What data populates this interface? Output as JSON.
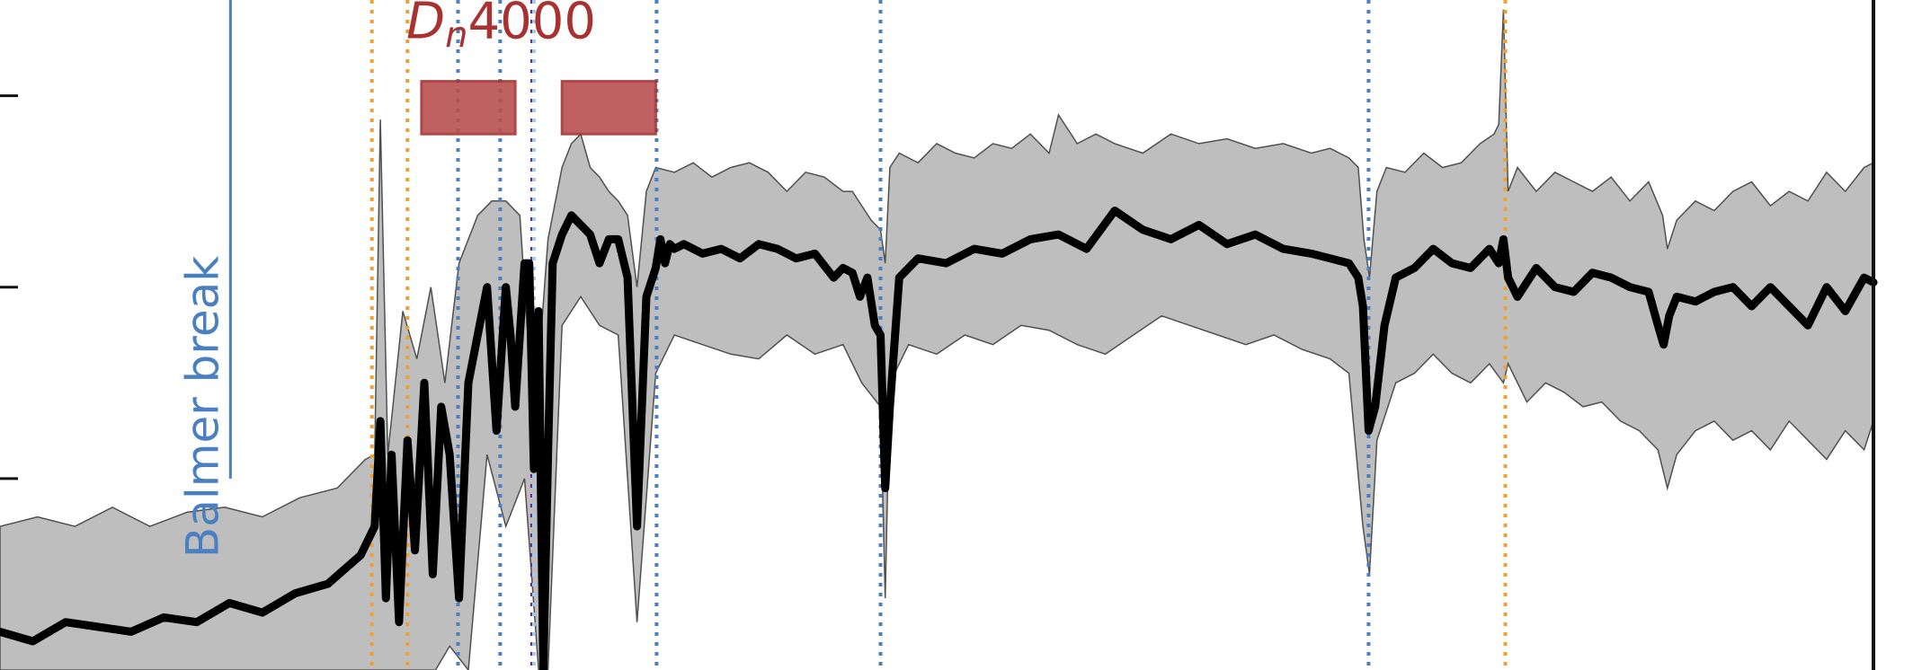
{
  "chart_data": {
    "type": "line",
    "title": "",
    "xlabel": "",
    "ylabel": "",
    "colors": {
      "median_line": "#000000",
      "band_fill": "#bebebe",
      "band_stroke": "#505050",
      "balmer": "#4a7fc1",
      "dn4000": "#a83232",
      "dn_box": "#b8504f",
      "orange": "#f0a030",
      "blue": "#4a7fc1",
      "purple": "#5a2a8a",
      "lightblue": "#a8c8e8"
    },
    "xlim": [
      3400,
      5400
    ],
    "ylim": [
      0,
      1.4
    ],
    "series": [
      {
        "role": "median",
        "x": [
          3400,
          3435,
          3470,
          3505,
          3540,
          3575,
          3610,
          3645,
          3680,
          3715,
          3750,
          3785,
          3800,
          3806,
          3812,
          3818,
          3826,
          3835,
          3843,
          3853,
          3862,
          3871,
          3880,
          3890,
          3900,
          3910,
          3920,
          3930,
          3940,
          3945,
          3950,
          3955,
          3960,
          3965,
          3970,
          3975,
          3980,
          3985,
          3990,
          4000,
          4010,
          4020,
          4030,
          4040,
          4050,
          4060,
          4070,
          4080,
          4090,
          4100,
          4105,
          4110,
          4115,
          4120,
          4130,
          4150,
          4170,
          4190,
          4210,
          4230,
          4250,
          4270,
          4290,
          4300,
          4310,
          4318,
          4326,
          4334,
          4340,
          4345,
          4350,
          4360,
          4380,
          4410,
          4440,
          4470,
          4500,
          4530,
          4560,
          4590,
          4620,
          4650,
          4680,
          4710,
          4740,
          4770,
          4800,
          4820,
          4840,
          4850,
          4855,
          4861,
          4868,
          4878,
          4890,
          4910,
          4930,
          4950,
          4970,
          4990,
          5000,
          5005,
          5010,
          5020,
          5040,
          5060,
          5080,
          5100,
          5120,
          5140,
          5160,
          5170,
          5176,
          5182,
          5190,
          5210,
          5230,
          5250,
          5270,
          5290,
          5310,
          5330,
          5350,
          5370,
          5390,
          5400
        ],
        "y": [
          0.08,
          0.06,
          0.1,
          0.09,
          0.08,
          0.11,
          0.1,
          0.14,
          0.12,
          0.16,
          0.18,
          0.24,
          0.3,
          0.52,
          0.15,
          0.45,
          0.1,
          0.48,
          0.25,
          0.6,
          0.2,
          0.55,
          0.45,
          0.15,
          0.6,
          0.7,
          0.8,
          0.5,
          0.8,
          0.7,
          0.55,
          0.7,
          0.85,
          0.85,
          0.42,
          0.75,
          0.0,
          0.45,
          0.85,
          0.91,
          0.95,
          0.93,
          0.91,
          0.85,
          0.9,
          0.9,
          0.82,
          0.3,
          0.78,
          0.84,
          0.9,
          0.85,
          0.89,
          0.88,
          0.89,
          0.87,
          0.88,
          0.86,
          0.89,
          0.88,
          0.86,
          0.87,
          0.82,
          0.84,
          0.83,
          0.78,
          0.82,
          0.72,
          0.7,
          0.38,
          0.55,
          0.82,
          0.86,
          0.85,
          0.88,
          0.87,
          0.9,
          0.91,
          0.88,
          0.96,
          0.92,
          0.9,
          0.93,
          0.89,
          0.91,
          0.88,
          0.87,
          0.86,
          0.85,
          0.82,
          0.76,
          0.5,
          0.55,
          0.72,
          0.82,
          0.84,
          0.88,
          0.85,
          0.84,
          0.88,
          0.85,
          0.9,
          0.82,
          0.78,
          0.84,
          0.8,
          0.79,
          0.83,
          0.82,
          0.8,
          0.79,
          0.72,
          0.68,
          0.74,
          0.78,
          0.77,
          0.79,
          0.8,
          0.76,
          0.8,
          0.76,
          0.72,
          0.8,
          0.75,
          0.82,
          0.81
        ]
      },
      {
        "role": "band_upper",
        "x": [
          3400,
          3440,
          3480,
          3520,
          3560,
          3600,
          3640,
          3680,
          3720,
          3760,
          3790,
          3800,
          3806,
          3814,
          3830,
          3845,
          3860,
          3875,
          3890,
          3910,
          3925,
          3940,
          3955,
          3970,
          3985,
          4000,
          4010,
          4020,
          4030,
          4040,
          4050,
          4060,
          4070,
          4080,
          4090,
          4100,
          4120,
          4140,
          4160,
          4180,
          4200,
          4220,
          4240,
          4260,
          4280,
          4300,
          4310,
          4320,
          4330,
          4340,
          4345,
          4350,
          4360,
          4380,
          4400,
          4420,
          4440,
          4460,
          4480,
          4500,
          4520,
          4530,
          4550,
          4570,
          4590,
          4620,
          4650,
          4680,
          4710,
          4740,
          4770,
          4800,
          4820,
          4840,
          4850,
          4856,
          4862,
          4870,
          4880,
          4900,
          4920,
          4940,
          4960,
          4980,
          4995,
          5000,
          5005,
          5010,
          5020,
          5040,
          5060,
          5080,
          5100,
          5120,
          5140,
          5160,
          5175,
          5180,
          5190,
          5210,
          5230,
          5250,
          5270,
          5290,
          5310,
          5330,
          5350,
          5370,
          5390,
          5400
        ],
        "y": [
          0.3,
          0.32,
          0.3,
          0.34,
          0.3,
          0.33,
          0.34,
          0.32,
          0.36,
          0.38,
          0.44,
          0.45,
          1.15,
          0.45,
          0.75,
          0.65,
          0.8,
          0.6,
          0.85,
          0.95,
          0.98,
          0.98,
          0.95,
          0.5,
          0.9,
          1.05,
          1.1,
          1.12,
          1.05,
          1.03,
          1.0,
          0.98,
          0.95,
          0.8,
          1.0,
          1.05,
          1.04,
          1.06,
          1.03,
          1.05,
          1.06,
          1.04,
          1.0,
          1.04,
          1.03,
          1.0,
          1.0,
          0.97,
          0.94,
          0.92,
          0.85,
          1.05,
          1.08,
          1.06,
          1.1,
          1.08,
          1.07,
          1.1,
          1.09,
          1.12,
          1.08,
          1.16,
          1.1,
          1.12,
          1.1,
          1.08,
          1.12,
          1.1,
          1.11,
          1.09,
          1.1,
          1.08,
          1.09,
          1.07,
          1.05,
          0.9,
          0.82,
          1.0,
          1.05,
          1.04,
          1.08,
          1.05,
          1.06,
          1.1,
          1.12,
          1.14,
          1.38,
          1.0,
          1.05,
          1.0,
          1.04,
          1.02,
          1.0,
          1.03,
          0.98,
          1.02,
          0.95,
          0.88,
          0.94,
          0.98,
          0.96,
          1.0,
          1.02,
          0.97,
          1.0,
          0.98,
          1.04,
          1.0,
          1.05,
          1.06
        ]
      },
      {
        "role": "band_lower",
        "x": [
          3400,
          3440,
          3480,
          3520,
          3560,
          3600,
          3640,
          3680,
          3720,
          3760,
          3790,
          3806,
          3820,
          3835,
          3850,
          3865,
          3880,
          3900,
          3920,
          3940,
          3960,
          3975,
          3985,
          4000,
          4020,
          4040,
          4060,
          4080,
          4100,
          4120,
          4150,
          4180,
          4210,
          4240,
          4270,
          4300,
          4320,
          4340,
          4345,
          4350,
          4370,
          4400,
          4430,
          4460,
          4490,
          4520,
          4550,
          4580,
          4610,
          4640,
          4670,
          4700,
          4730,
          4760,
          4790,
          4820,
          4840,
          4855,
          4862,
          4870,
          4890,
          4910,
          4930,
          4950,
          4970,
          4990,
          5005,
          5010,
          5030,
          5050,
          5070,
          5090,
          5110,
          5130,
          5150,
          5170,
          5180,
          5190,
          5210,
          5230,
          5250,
          5270,
          5290,
          5310,
          5330,
          5350,
          5370,
          5390,
          5400
        ],
        "y": [
          0.0,
          0.0,
          0.0,
          0.0,
          0.0,
          0.0,
          0.0,
          0.0,
          0.0,
          0.0,
          0.0,
          0.0,
          0.0,
          0.0,
          0.0,
          0.0,
          0.05,
          0.0,
          0.45,
          0.3,
          0.4,
          0.0,
          0.0,
          0.72,
          0.78,
          0.72,
          0.7,
          0.1,
          0.62,
          0.7,
          0.68,
          0.66,
          0.65,
          0.7,
          0.66,
          0.68,
          0.6,
          0.55,
          0.15,
          0.6,
          0.68,
          0.66,
          0.7,
          0.68,
          0.72,
          0.71,
          0.68,
          0.66,
          0.7,
          0.74,
          0.72,
          0.7,
          0.68,
          0.7,
          0.67,
          0.65,
          0.62,
          0.3,
          0.2,
          0.48,
          0.6,
          0.62,
          0.66,
          0.62,
          0.6,
          0.64,
          0.6,
          0.64,
          0.56,
          0.6,
          0.58,
          0.55,
          0.56,
          0.52,
          0.5,
          0.46,
          0.38,
          0.45,
          0.5,
          0.52,
          0.48,
          0.5,
          0.46,
          0.52,
          0.48,
          0.44,
          0.5,
          0.46,
          0.52
        ]
      }
    ],
    "vlines": [
      {
        "x": 3797,
        "color": "orange"
      },
      {
        "x": 3835,
        "color": "orange"
      },
      {
        "x": 3889,
        "color": "blue"
      },
      {
        "x": 3934,
        "color": "blue"
      },
      {
        "x": 3968,
        "color": "purple"
      },
      {
        "x": 3970,
        "color": "lightblue"
      },
      {
        "x": 4101,
        "color": "blue"
      },
      {
        "x": 4340,
        "color": "blue"
      },
      {
        "x": 4861,
        "color": "blue"
      },
      {
        "x": 5007,
        "color": "orange"
      }
    ],
    "balmer_break": {
      "x": 3646,
      "label": "Balmer break"
    },
    "dn4000": {
      "label_main": "D",
      "label_sub": "n",
      "label_rest": "4000",
      "windows": [
        [
          3850,
          3950
        ],
        [
          4000,
          4100
        ]
      ]
    },
    "ytick_values": [
      0.4,
      0.8,
      1.2
    ]
  }
}
